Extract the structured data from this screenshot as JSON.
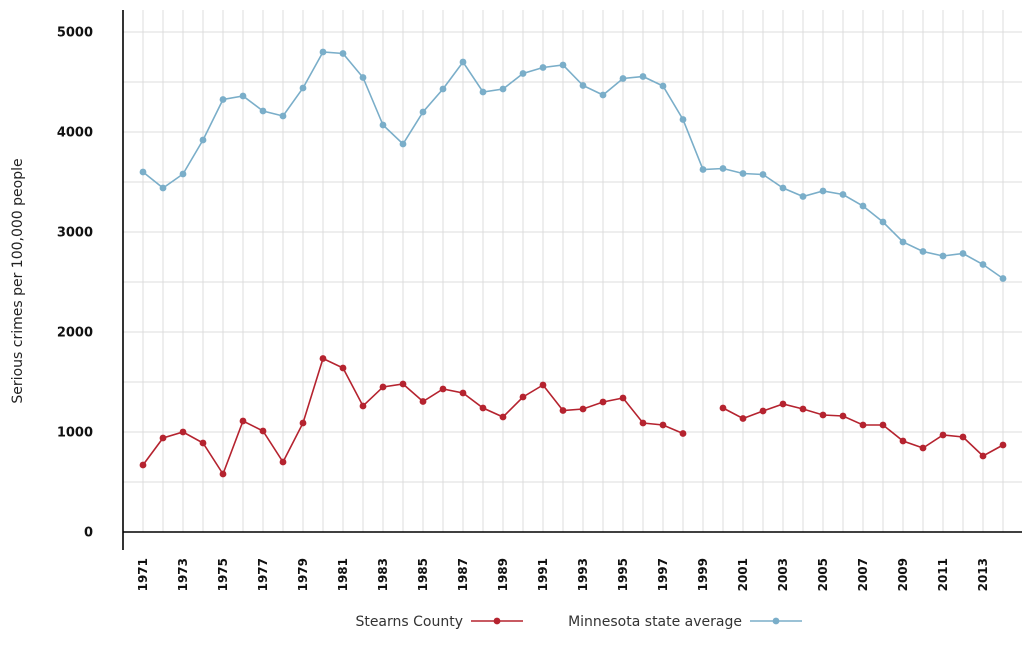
{
  "chart_data": {
    "type": "line",
    "title": "",
    "xlabel": "",
    "ylabel": "Serious crimes per 100,000 people",
    "ylim": [
      0,
      5000
    ],
    "yticks": [
      0,
      1000,
      2000,
      3000,
      4000,
      5000
    ],
    "x": [
      1971,
      1972,
      1973,
      1974,
      1975,
      1976,
      1977,
      1978,
      1979,
      1980,
      1981,
      1982,
      1983,
      1984,
      1985,
      1986,
      1987,
      1988,
      1989,
      1990,
      1991,
      1992,
      1993,
      1994,
      1995,
      1996,
      1997,
      1998,
      1999,
      2000,
      2001,
      2002,
      2003,
      2004,
      2005,
      2006,
      2007,
      2008,
      2009,
      2010,
      2011,
      2012,
      2013,
      2014
    ],
    "xtick_labels": [
      "1971",
      "1973",
      "1975",
      "1977",
      "1979",
      "1981",
      "1983",
      "1985",
      "1987",
      "1989",
      "1991",
      "1993",
      "1995",
      "1997",
      "1999",
      "2001",
      "2003",
      "2005",
      "2007",
      "2009",
      "2011",
      "2013"
    ],
    "grid": true,
    "legend_position": "bottom",
    "series": [
      {
        "name": "Stearns County",
        "color": "#b5232f",
        "values": [
          670,
          940,
          1000,
          890,
          580,
          1110,
          1010,
          700,
          1090,
          1735,
          1640,
          1260,
          1450,
          1480,
          1305,
          1430,
          1390,
          1240,
          1150,
          1350,
          1470,
          1215,
          1230,
          1300,
          1340,
          1090,
          1070,
          985,
          null,
          1240,
          1135,
          1210,
          1280,
          1230,
          1170,
          1160,
          1070,
          1070,
          910,
          840,
          970,
          950,
          760,
          870
        ]
      },
      {
        "name": "Minnesota state average",
        "color": "#7aaec9",
        "values": [
          3600,
          3440,
          3580,
          3920,
          4325,
          4360,
          4210,
          4160,
          4440,
          4800,
          4785,
          4545,
          4070,
          3880,
          4200,
          4430,
          4700,
          4400,
          4430,
          4585,
          4645,
          4670,
          4465,
          4370,
          4535,
          4555,
          4460,
          4125,
          3625,
          3635,
          3585,
          3575,
          3440,
          3355,
          3410,
          3375,
          3260,
          3100,
          2900,
          2805,
          2760,
          2785,
          2675,
          2535
        ]
      }
    ]
  },
  "colors": {
    "grid": "#dcdcdc",
    "axis": "#000000"
  }
}
